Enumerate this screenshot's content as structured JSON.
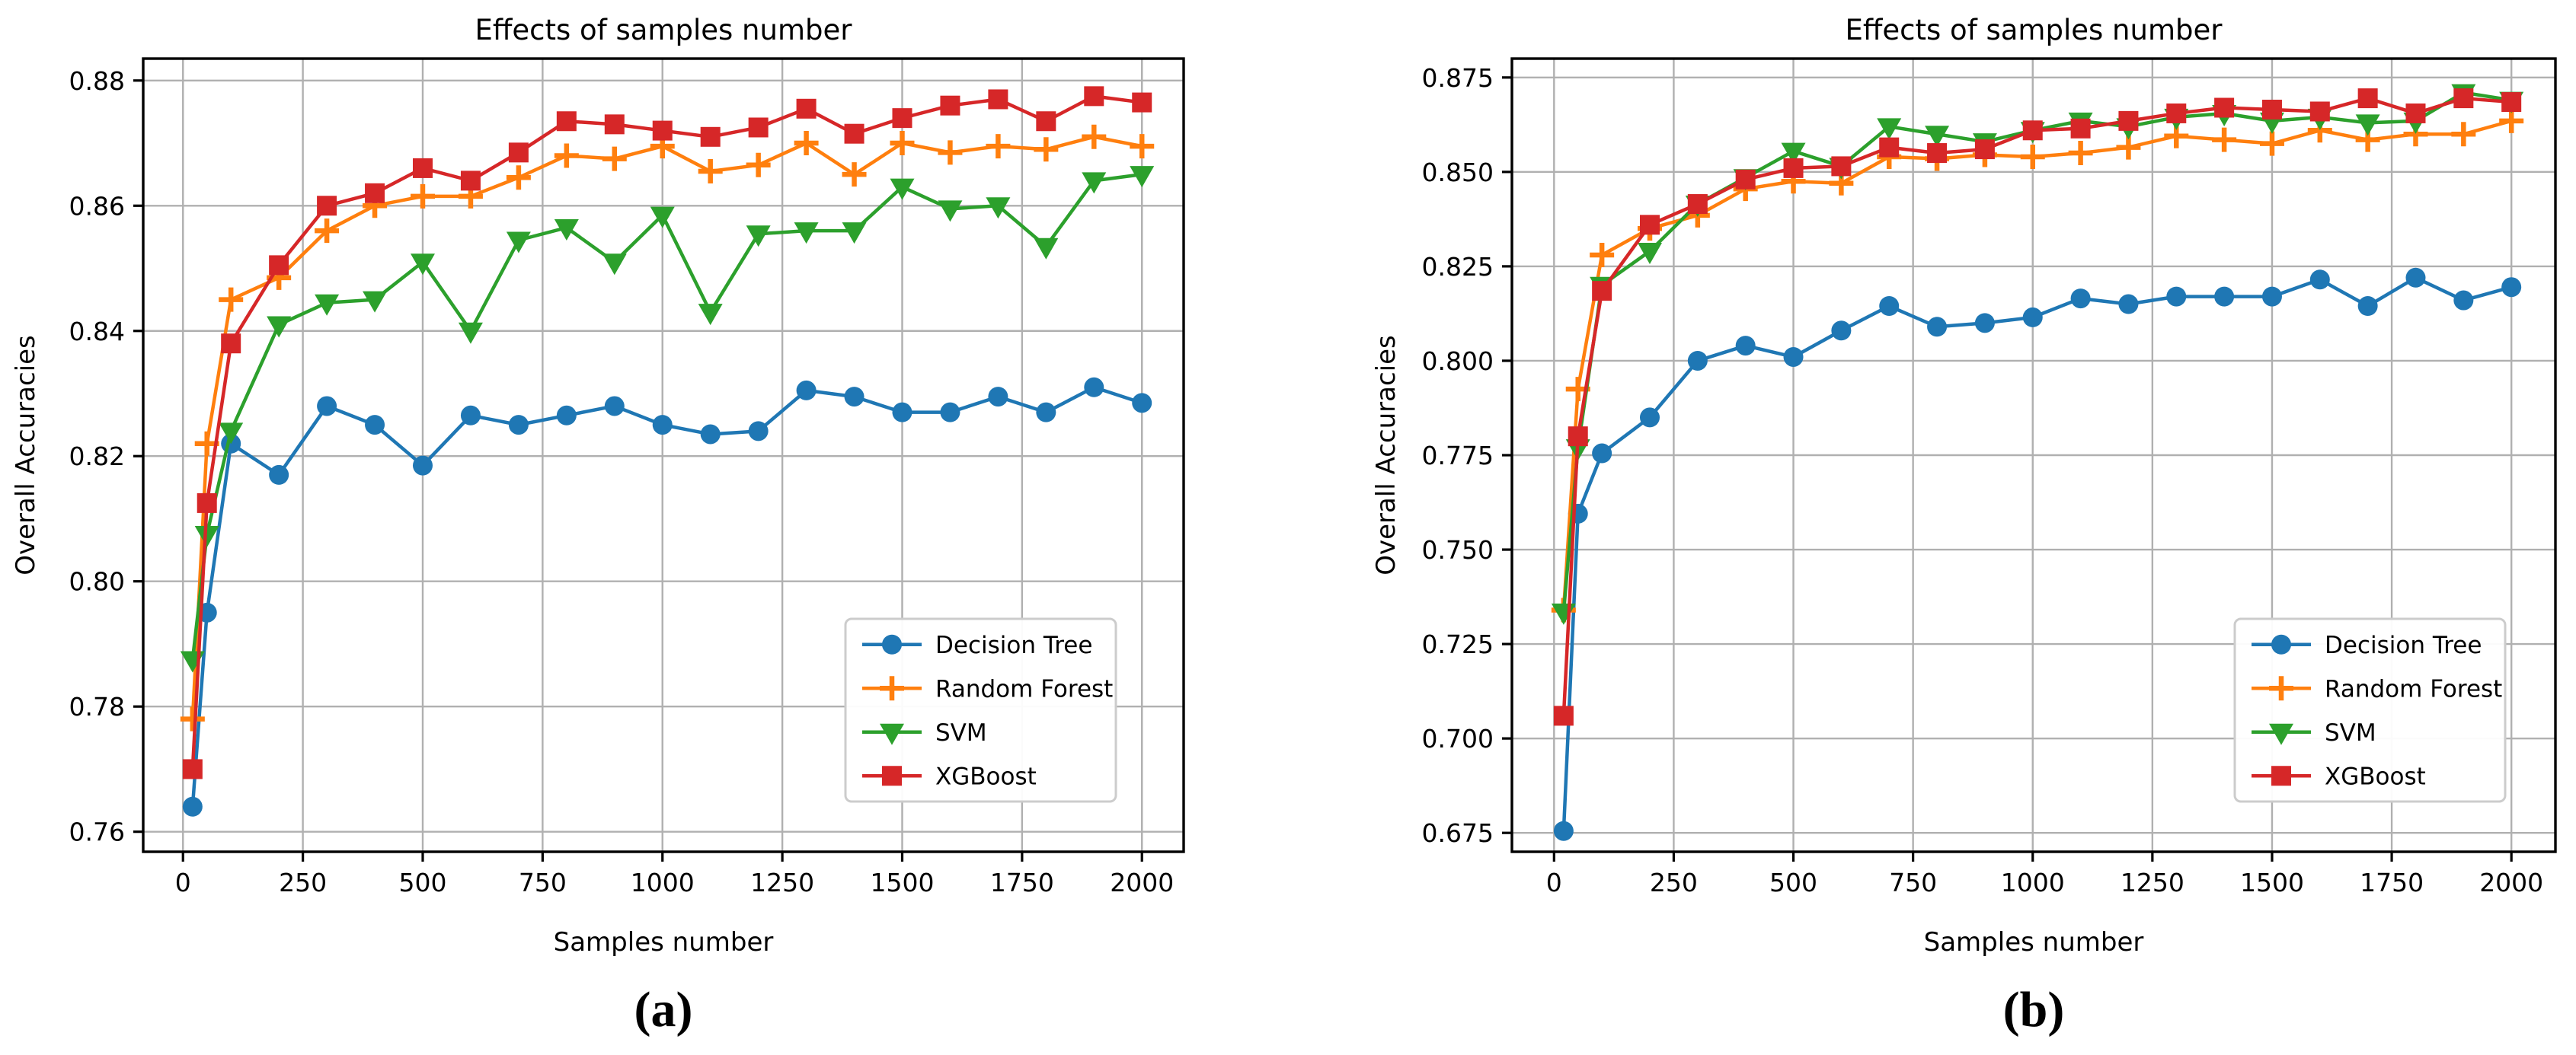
{
  "figure": {
    "background": "#ffffff"
  },
  "chart_data": [
    {
      "id": "a",
      "type": "line",
      "title": "Effects of samples number",
      "xlabel": "Samples number",
      "ylabel": "Overall Accuracies",
      "caption": "(a)",
      "grid": true,
      "legend_position": "lower right",
      "x": [
        20,
        50,
        100,
        200,
        300,
        400,
        500,
        600,
        700,
        800,
        900,
        1000,
        1100,
        1200,
        1300,
        1400,
        1500,
        1600,
        1700,
        1800,
        1900,
        2000
      ],
      "x_ticks": [
        0,
        250,
        500,
        750,
        1000,
        1250,
        1500,
        1750,
        2000
      ],
      "y_ticks": [
        0.76,
        0.78,
        0.8,
        0.82,
        0.84,
        0.86,
        0.88
      ],
      "y_tick_decimals": 2,
      "xlim": [
        -83,
        2087
      ],
      "ylim": [
        0.7568,
        0.8835
      ],
      "series": [
        {
          "name": "Decision Tree",
          "color": "#1f77b4",
          "marker": "circle",
          "values": [
            0.764,
            0.795,
            0.822,
            0.817,
            0.828,
            0.825,
            0.8185,
            0.8265,
            0.825,
            0.8265,
            0.828,
            0.825,
            0.8235,
            0.824,
            0.8305,
            0.8295,
            0.827,
            0.827,
            0.8295,
            0.827,
            0.831,
            0.8285
          ]
        },
        {
          "name": "Random Forest",
          "color": "#ff7f0e",
          "marker": "plus",
          "values": [
            0.778,
            0.822,
            0.845,
            0.8485,
            0.856,
            0.86,
            0.8615,
            0.8615,
            0.8645,
            0.868,
            0.8675,
            0.8695,
            0.8655,
            0.8665,
            0.87,
            0.865,
            0.87,
            0.8685,
            0.8695,
            0.869,
            0.871,
            0.8695
          ]
        },
        {
          "name": "SVM",
          "color": "#2ca02c",
          "marker": "triangle-down",
          "values": [
            0.7875,
            0.8075,
            0.824,
            0.841,
            0.8445,
            0.845,
            0.851,
            0.84,
            0.8545,
            0.8565,
            0.851,
            0.8585,
            0.843,
            0.8555,
            0.856,
            0.856,
            0.863,
            0.8595,
            0.86,
            0.8535,
            0.864,
            0.865
          ]
        },
        {
          "name": "XGBoost",
          "color": "#d62728",
          "marker": "square",
          "values": [
            0.77,
            0.8125,
            0.838,
            0.8505,
            0.86,
            0.862,
            0.866,
            0.864,
            0.8685,
            0.8735,
            0.873,
            0.872,
            0.871,
            0.8725,
            0.8755,
            0.8715,
            0.874,
            0.876,
            0.877,
            0.8735,
            0.8775,
            0.8765
          ]
        }
      ]
    },
    {
      "id": "b",
      "type": "line",
      "title": "Effects of samples number",
      "xlabel": "Samples number",
      "ylabel": "Overall Accuracies",
      "caption": "(b)",
      "grid": true,
      "legend_position": "lower right",
      "x": [
        20,
        50,
        100,
        200,
        300,
        400,
        500,
        600,
        700,
        800,
        900,
        1000,
        1100,
        1200,
        1300,
        1400,
        1500,
        1600,
        1700,
        1800,
        1900,
        2000
      ],
      "x_ticks": [
        0,
        250,
        500,
        750,
        1000,
        1250,
        1500,
        1750,
        2000
      ],
      "y_ticks": [
        0.675,
        0.7,
        0.725,
        0.75,
        0.775,
        0.8,
        0.825,
        0.85,
        0.875
      ],
      "y_tick_decimals": 3,
      "xlim": [
        -88,
        2092
      ],
      "ylim": [
        0.67,
        0.88
      ],
      "series": [
        {
          "name": "Decision Tree",
          "color": "#1f77b4",
          "marker": "circle",
          "values": [
            0.6755,
            0.7595,
            0.7755,
            0.785,
            0.8,
            0.804,
            0.801,
            0.808,
            0.8145,
            0.809,
            0.81,
            0.8115,
            0.8165,
            0.815,
            0.817,
            0.817,
            0.817,
            0.8215,
            0.8145,
            0.822,
            0.816,
            0.8195
          ]
        },
        {
          "name": "Random Forest",
          "color": "#ff7f0e",
          "marker": "plus",
          "values": [
            0.734,
            0.7925,
            0.828,
            0.835,
            0.8385,
            0.8455,
            0.8475,
            0.847,
            0.854,
            0.8535,
            0.8545,
            0.854,
            0.855,
            0.8565,
            0.8595,
            0.8585,
            0.8575,
            0.861,
            0.8585,
            0.86,
            0.86,
            0.8635
          ]
        },
        {
          "name": "SVM",
          "color": "#2ca02c",
          "marker": "triangle-down",
          "values": [
            0.7335,
            0.777,
            0.82,
            0.829,
            0.8415,
            0.8485,
            0.8555,
            0.8515,
            0.862,
            0.86,
            0.858,
            0.861,
            0.8635,
            0.862,
            0.8645,
            0.8655,
            0.8635,
            0.8645,
            0.863,
            0.8635,
            0.871,
            0.869
          ]
        },
        {
          "name": "XGBoost",
          "color": "#d62728",
          "marker": "square",
          "values": [
            0.706,
            0.78,
            0.8185,
            0.836,
            0.8415,
            0.848,
            0.851,
            0.8515,
            0.8565,
            0.855,
            0.856,
            0.861,
            0.8615,
            0.8635,
            0.8655,
            0.867,
            0.8665,
            0.866,
            0.8695,
            0.8655,
            0.8695,
            0.8685
          ]
        }
      ]
    }
  ],
  "style_tokens": {
    "grid_color": "#b0b0b0",
    "spine_color": "#000000",
    "text_color": "#000000",
    "legend_border_color": "#cccccc",
    "legend_background": "#ffffff"
  }
}
